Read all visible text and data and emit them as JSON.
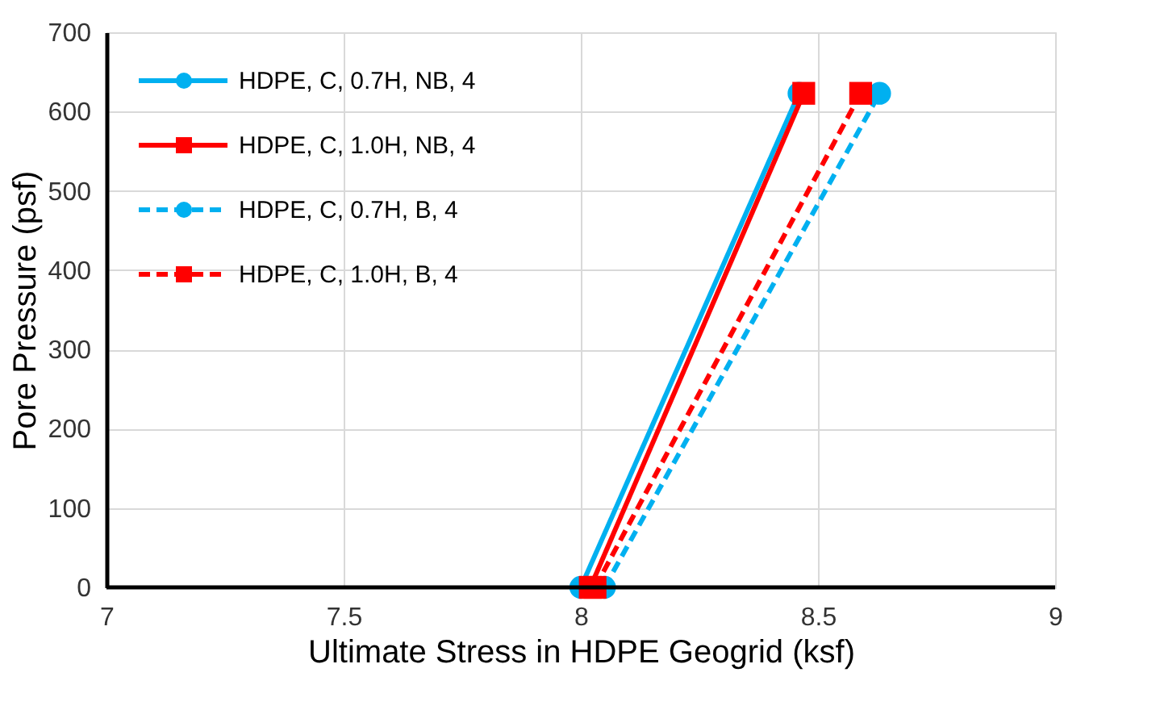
{
  "chart_data": {
    "type": "line",
    "xlabel": "Ultimate Stress in HDPE Geogrid (ksf)",
    "ylabel": "Pore Pressure (psf)",
    "xlim": [
      7,
      9
    ],
    "xticks": [
      7,
      7.5,
      8,
      8.5,
      9
    ],
    "ylim": [
      0,
      700
    ],
    "yticks": [
      0,
      100,
      200,
      300,
      400,
      500,
      600,
      700
    ],
    "grid": true,
    "legend": "top left",
    "series": [
      {
        "name": "HDPE, C, 0.7H, NB, 4",
        "color": "#00b0f0",
        "marker": "circle",
        "line_style": "solid",
        "x": [
          8.0,
          8.46
        ],
        "values": [
          0,
          623
        ]
      },
      {
        "name": "HDPE, C, 1.0H, NB, 4",
        "color": "#ff0000",
        "marker": "square",
        "line_style": "solid",
        "x": [
          8.02,
          8.47
        ],
        "values": [
          0,
          623
        ]
      },
      {
        "name": "HDPE, C, 0.7H, B, 4",
        "color": "#00b0f0",
        "marker": "circle",
        "line_style": "dashed",
        "x": [
          8.05,
          8.63
        ],
        "values": [
          0,
          623
        ]
      },
      {
        "name": "HDPE, C, 1.0H, B, 4",
        "color": "#ff0000",
        "marker": "square",
        "line_style": "dashed",
        "x": [
          8.03,
          8.59
        ],
        "values": [
          0,
          623
        ]
      }
    ]
  }
}
